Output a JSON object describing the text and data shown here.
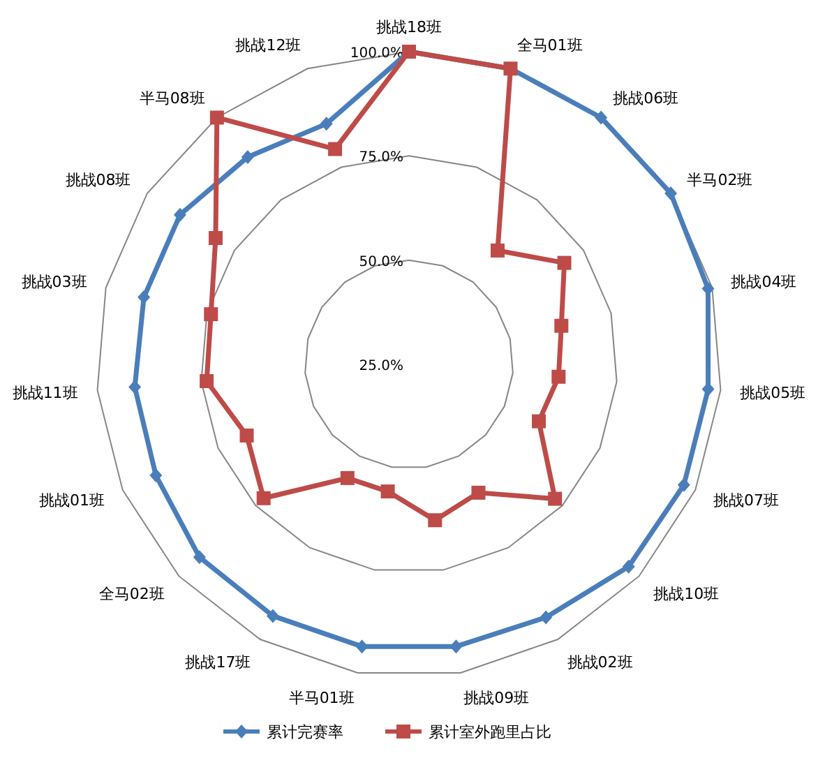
{
  "chart_data": {
    "type": "radar",
    "categories": [
      "挑战18班",
      "全马01班",
      "挑战06班",
      "半马02班",
      "挑战04班",
      "挑战05班",
      "挑战07班",
      "挑战10班",
      "挑战02班",
      "挑战09班",
      "半马01班",
      "挑战17班",
      "全马02班",
      "挑战01班",
      "挑战11班",
      "挑战03班",
      "挑战08班",
      "半马08班",
      "挑战12班"
    ],
    "series": [
      {
        "name": "累计完赛率",
        "color": "#4a7ebb",
        "marker": "diamond",
        "values": [
          100,
          100,
          100,
          100,
          99,
          97,
          97,
          96.6,
          94,
          93.6,
          93.6,
          93.6,
          93.3,
          91.3,
          91,
          90.6,
          90.6,
          88,
          86
        ]
      },
      {
        "name": "累计室外跑里占比",
        "color": "#be4b48",
        "marker": "square",
        "values": [
          100,
          100,
          59.6,
          69.5,
          62.7,
          61,
          59,
          72.6,
          60,
          62.9,
          55.9,
          56,
          72.4,
          67.5,
          73.7,
          74,
          80.4,
          100,
          79.6
        ]
      }
    ],
    "ylim": [
      25,
      100
    ],
    "yticks": [
      {
        "value": 25,
        "label": "25.0%"
      },
      {
        "value": 50,
        "label": "50.0%"
      },
      {
        "value": 75,
        "label": "75.0%"
      },
      {
        "value": 100,
        "label": "100.0%"
      }
    ],
    "grid": true,
    "legend": "bottom"
  }
}
